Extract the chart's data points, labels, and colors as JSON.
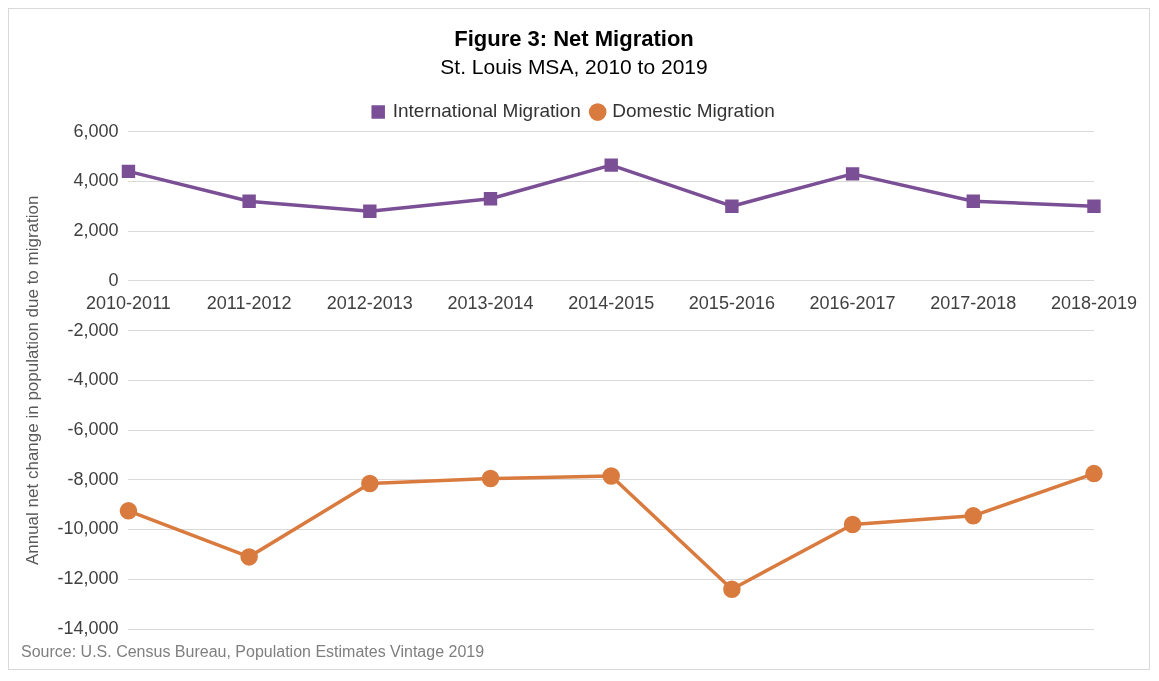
{
  "chart_data": {
    "type": "line",
    "title": "Figure 3: Net Migration",
    "subtitle": "St. Louis MSA, 2010 to 2019",
    "ylabel": "Annual net change in population due to migration",
    "categories": [
      "2010-2011",
      "2011-2012",
      "2012-2013",
      "2013-2014",
      "2014-2015",
      "2015-2016",
      "2016-2017",
      "2017-2018",
      "2018-2019"
    ],
    "series": [
      {
        "name": "International Migration",
        "color": "#7b4f96",
        "marker": "square",
        "values": [
          4400,
          3200,
          2800,
          3300,
          4650,
          3000,
          4300,
          3200,
          3000
        ]
      },
      {
        "name": "Domestic Migration",
        "color": "#d97a3e",
        "marker": "circle",
        "values": [
          -9250,
          -11100,
          -8150,
          -7950,
          -7850,
          -12400,
          -9800,
          -9450,
          -7750
        ]
      }
    ],
    "ylim": [
      -14000,
      6000
    ],
    "yticks": [
      {
        "value": -14000,
        "label": "-14,000"
      },
      {
        "value": -12000,
        "label": "-12,000"
      },
      {
        "value": -10000,
        "label": "-10,000"
      },
      {
        "value": -8000,
        "label": "-8,000"
      },
      {
        "value": -6000,
        "label": "-6,000"
      },
      {
        "value": -4000,
        "label": "-4,000"
      },
      {
        "value": -2000,
        "label": "-2,000"
      },
      0,
      {
        "value": 2000,
        "label": "2,000"
      },
      {
        "value": 4000,
        "label": "4,000"
      },
      {
        "value": 6000,
        "label": "6,000"
      }
    ],
    "grid": "y",
    "legend": "top",
    "line_style": "solid",
    "annotations": [
      "Source: U.S. Census Bureau, Population Estimates Vintage 2019"
    ]
  }
}
